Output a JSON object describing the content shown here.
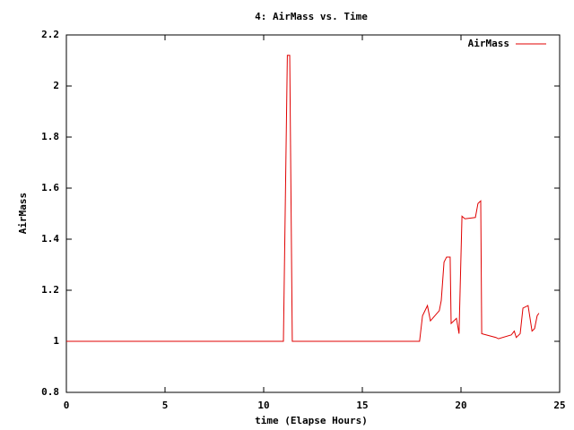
{
  "chart_data": {
    "type": "line",
    "title": "4: AirMass vs. Time",
    "x_label": "time (Elapse Hours)",
    "y_label": "AirMass",
    "xlim": [
      0,
      25
    ],
    "xticks": [
      0,
      5,
      10,
      15,
      20,
      25
    ],
    "ylim": [
      0.8,
      2.2
    ],
    "yticks": [
      0.8,
      1,
      1.2,
      1.4,
      1.6,
      1.8,
      2,
      2.2
    ],
    "legend": "upper right",
    "series": [
      {
        "name": "AirMass",
        "color": "#e00000",
        "x": [
          0,
          11.0,
          11.2,
          11.32,
          11.45,
          17.9,
          18.05,
          18.3,
          18.45,
          18.9,
          19.0,
          19.14,
          19.27,
          19.45,
          19.5,
          19.77,
          19.9,
          20.05,
          20.2,
          20.73,
          20.86,
          21.0,
          21.05,
          21.77,
          21.9,
          22.55,
          22.7,
          22.8,
          23.0,
          23.14,
          23.4,
          23.6,
          23.73,
          23.86,
          23.95
        ],
        "values": [
          1,
          1,
          2.12,
          2.12,
          1,
          1,
          1.1,
          1.14,
          1.08,
          1.12,
          1.16,
          1.31,
          1.33,
          1.33,
          1.07,
          1.09,
          1.03,
          1.49,
          1.48,
          1.485,
          1.54,
          1.55,
          1.03,
          1.015,
          1.01,
          1.025,
          1.04,
          1.015,
          1.03,
          1.13,
          1.14,
          1.04,
          1.05,
          1.1,
          1.11
        ]
      }
    ]
  }
}
